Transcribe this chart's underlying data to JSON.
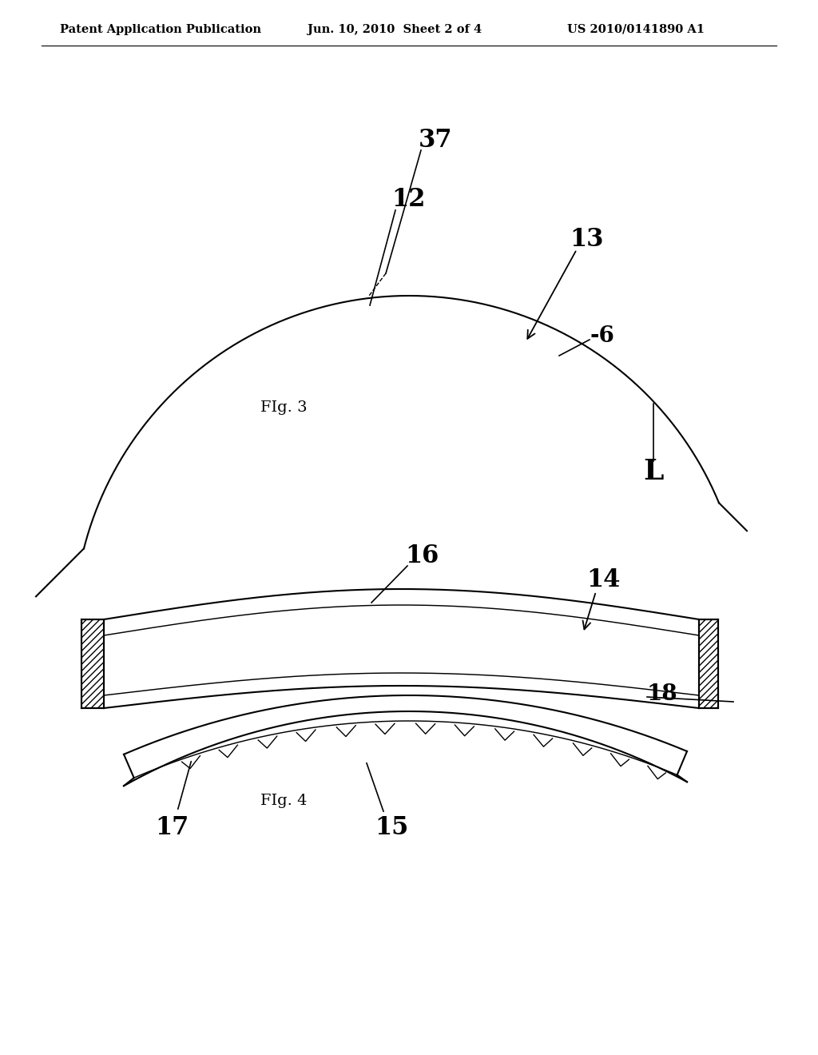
{
  "background_color": "#ffffff",
  "header_left": "Patent Application Publication",
  "header_mid": "Jun. 10, 2010  Sheet 2 of 4",
  "header_right": "US 2010/0141890 A1",
  "header_fontsize": 10.5,
  "fig3_caption": "FIg. 3",
  "fig4_caption": "FIg. 4",
  "line_width": 1.5,
  "label_fontsize": 20,
  "caption_fontsize": 14
}
